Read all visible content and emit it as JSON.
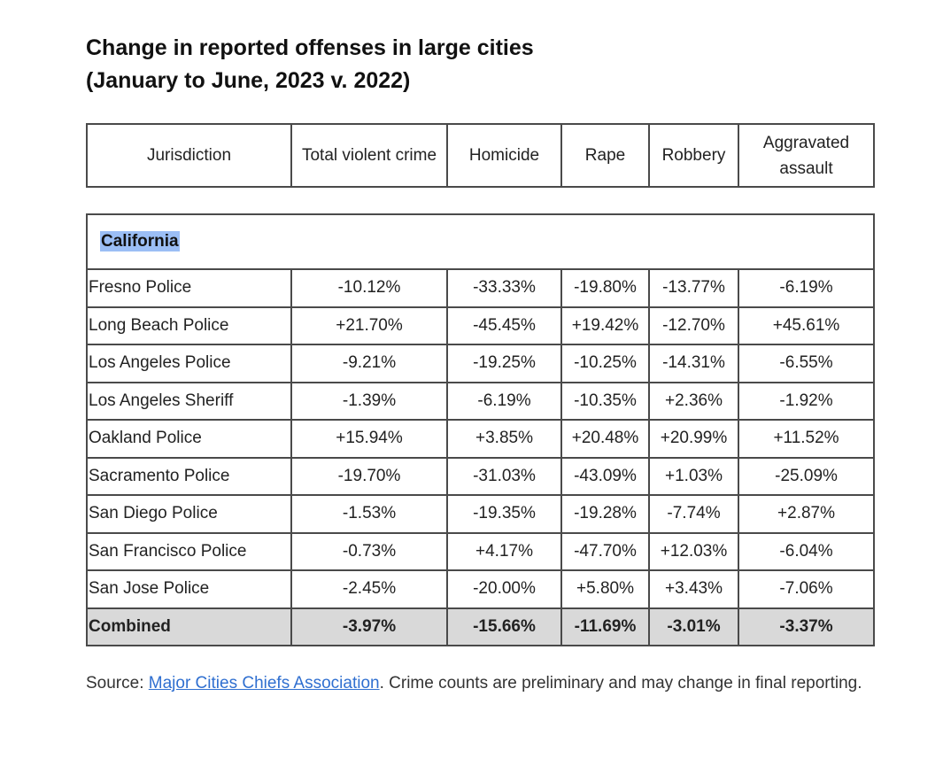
{
  "title": {
    "line1": "Change in reported offenses in large cities",
    "line2": "(January to June, 2023 v. 2022)"
  },
  "columns": [
    "Jurisdiction",
    "Total violent crime",
    "Homicide",
    "Rape",
    "Robbery",
    "Aggravated assault"
  ],
  "state": "California",
  "rows": [
    {
      "jurisdiction": "Fresno Police",
      "total": "-10.12%",
      "homicide": "-33.33%",
      "rape": "-19.80%",
      "robbery": "-13.77%",
      "assault": "-6.19%"
    },
    {
      "jurisdiction": "Long Beach Police",
      "total": "+21.70%",
      "homicide": "-45.45%",
      "rape": "+19.42%",
      "robbery": "-12.70%",
      "assault": "+45.61%"
    },
    {
      "jurisdiction": "Los Angeles Police",
      "total": "-9.21%",
      "homicide": "-19.25%",
      "rape": "-10.25%",
      "robbery": "-14.31%",
      "assault": "-6.55%"
    },
    {
      "jurisdiction": "Los Angeles Sheriff",
      "total": "-1.39%",
      "homicide": "-6.19%",
      "rape": "-10.35%",
      "robbery": "+2.36%",
      "assault": "-1.92%"
    },
    {
      "jurisdiction": "Oakland Police",
      "total": "+15.94%",
      "homicide": "+3.85%",
      "rape": "+20.48%",
      "robbery": "+20.99%",
      "assault": "+11.52%"
    },
    {
      "jurisdiction": "Sacramento Police",
      "total": "-19.70%",
      "homicide": "-31.03%",
      "rape": "-43.09%",
      "robbery": "+1.03%",
      "assault": "-25.09%"
    },
    {
      "jurisdiction": "San Diego Police",
      "total": "-1.53%",
      "homicide": "-19.35%",
      "rape": "-19.28%",
      "robbery": "-7.74%",
      "assault": "+2.87%"
    },
    {
      "jurisdiction": "San Francisco Police",
      "total": "-0.73%",
      "homicide": "+4.17%",
      "rape": "-47.70%",
      "robbery": "+12.03%",
      "assault": "-6.04%"
    },
    {
      "jurisdiction": "San Jose Police",
      "total": "-2.45%",
      "homicide": "-20.00%",
      "rape": "+5.80%",
      "robbery": "+3.43%",
      "assault": "-7.06%"
    }
  ],
  "combined": {
    "jurisdiction": "Combined",
    "total": "-3.97%",
    "homicide": "-15.66%",
    "rape": "-11.69%",
    "robbery": "-3.01%",
    "assault": "-3.37%"
  },
  "source": {
    "prefix": "Source: ",
    "link_text": "Major Cities Chiefs Association",
    "suffix": ". Crime counts are preliminary and may change in final reporting."
  },
  "colors": {
    "highlight": "#9bbef5",
    "combined_bg": "#d9d9d9",
    "link": "#2f6fd0"
  }
}
